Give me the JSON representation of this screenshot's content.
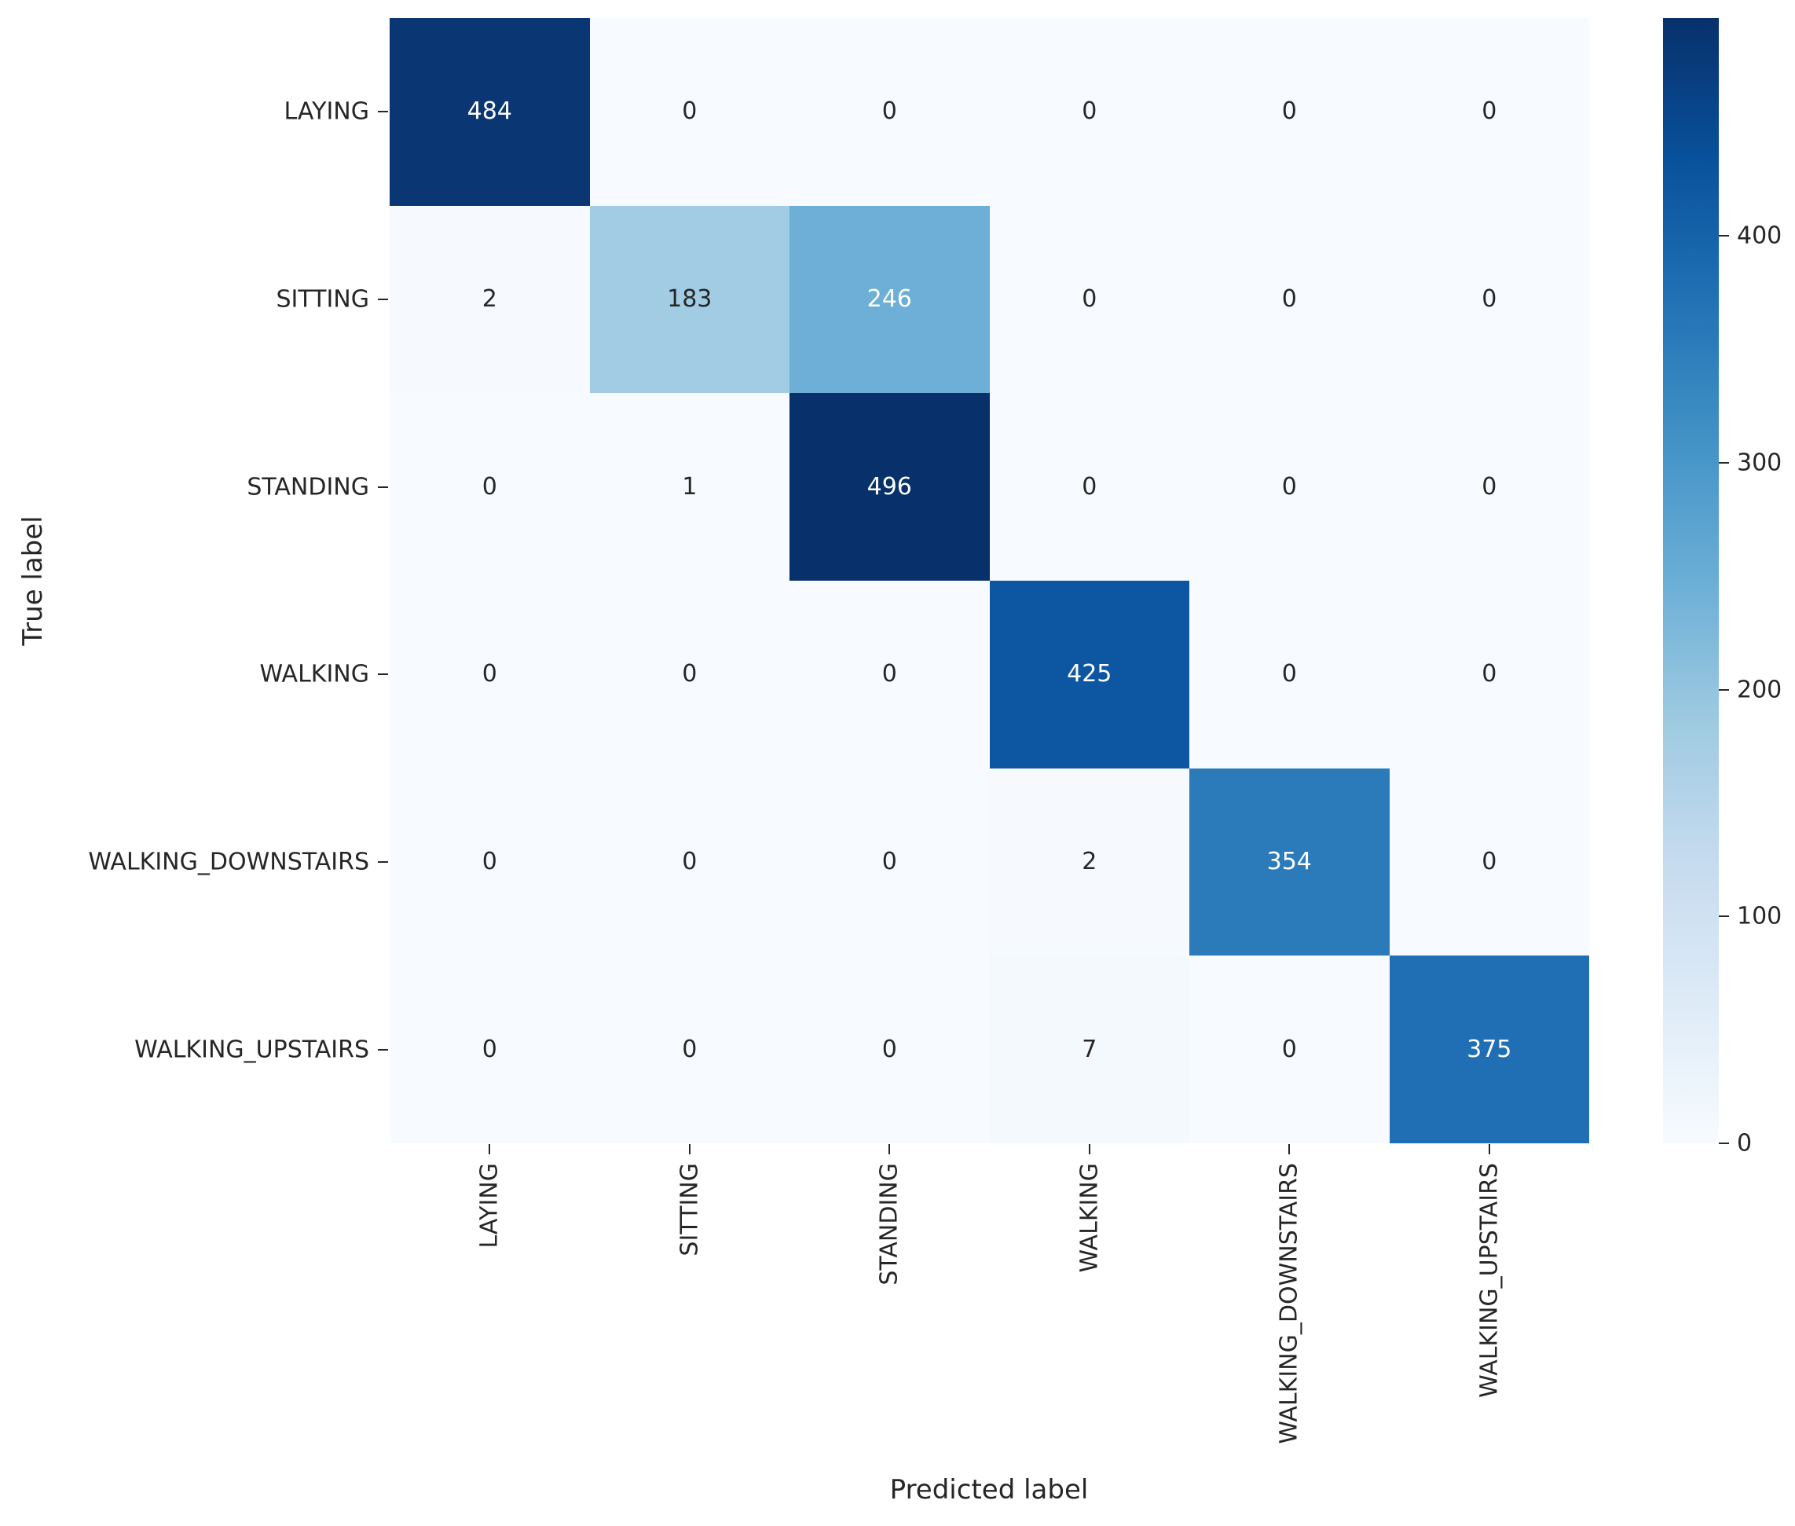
{
  "chart_data": {
    "type": "heatmap",
    "title": "",
    "xlabel": "Predicted label",
    "ylabel": "True label",
    "x_categories": [
      "LAYING",
      "SITTING",
      "STANDING",
      "WALKING",
      "WALKING_DOWNSTAIRS",
      "WALKING_UPSTAIRS"
    ],
    "y_categories": [
      "LAYING",
      "SITTING",
      "STANDING",
      "WALKING",
      "WALKING_DOWNSTAIRS",
      "WALKING_UPSTAIRS"
    ],
    "matrix": [
      [
        484,
        0,
        0,
        0,
        0,
        0
      ],
      [
        2,
        183,
        246,
        0,
        0,
        0
      ],
      [
        0,
        1,
        496,
        0,
        0,
        0
      ],
      [
        0,
        0,
        0,
        425,
        0,
        0
      ],
      [
        0,
        0,
        0,
        2,
        354,
        0
      ],
      [
        0,
        0,
        0,
        7,
        0,
        375
      ]
    ],
    "vmin": 0,
    "vmax": 496,
    "colormap": "Blues",
    "grid": false,
    "legend_position": "right-colorbar",
    "cell_colors": [
      [
        "#0a3673",
        "#f7fbff",
        "#f7fbff",
        "#f7fbff",
        "#f7fbff",
        "#f7fbff"
      ],
      [
        "#f6fafe",
        "#a2cce3",
        "#6dafd6",
        "#f7fbff",
        "#f7fbff",
        "#f7fbff"
      ],
      [
        "#f7fbff",
        "#f7fafe",
        "#08306b",
        "#f7fbff",
        "#f7fbff",
        "#f7fbff"
      ],
      [
        "#f7fbff",
        "#f7fbff",
        "#f7fbff",
        "#0d57a2",
        "#f7fbff",
        "#f7fbff"
      ],
      [
        "#f7fbff",
        "#f7fbff",
        "#f7fbff",
        "#f6fafe",
        "#2b7bba",
        "#f7fbff"
      ],
      [
        "#f7fbff",
        "#f7fbff",
        "#f7fbff",
        "#f4f9fe",
        "#f7fbff",
        "#206fb4"
      ]
    ],
    "cell_text_colors": [
      [
        "#ffffff",
        "#262626",
        "#262626",
        "#262626",
        "#262626",
        "#262626"
      ],
      [
        "#262626",
        "#262626",
        "#ffffff",
        "#262626",
        "#262626",
        "#262626"
      ],
      [
        "#262626",
        "#262626",
        "#ffffff",
        "#262626",
        "#262626",
        "#262626"
      ],
      [
        "#262626",
        "#262626",
        "#262626",
        "#ffffff",
        "#262626",
        "#262626"
      ],
      [
        "#262626",
        "#262626",
        "#262626",
        "#262626",
        "#ffffff",
        "#262626"
      ],
      [
        "#262626",
        "#262626",
        "#262626",
        "#262626",
        "#262626",
        "#ffffff"
      ]
    ],
    "colorbar": {
      "ticks": [
        0,
        100,
        200,
        300,
        400
      ],
      "gradient_stops_top_to_bottom": [
        "#08306b",
        "#08519c",
        "#2171b5",
        "#4292c6",
        "#6baed6",
        "#9ecae1",
        "#c6dbef",
        "#deebf7",
        "#f7fbff"
      ]
    },
    "annotation_color_dark": "#262626",
    "annotation_color_light": "#ffffff"
  }
}
